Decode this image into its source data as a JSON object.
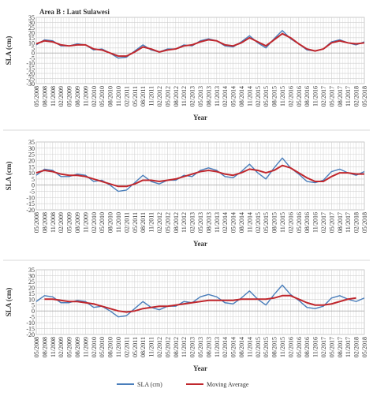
{
  "chart_data": [
    {
      "type": "line",
      "title": "Area B : Laut Sulawesi",
      "x_label": "Year",
      "y_label": "SLA (cm)",
      "categories": [
        "05/2008",
        "08/2008",
        "11/2008",
        "02/2009",
        "05/2009",
        "08/2009",
        "11/2009",
        "02/2010",
        "05/2010",
        "08/2010",
        "11/2010",
        "02/2011",
        "05/2011",
        "08/2011",
        "11/2011",
        "02/2012",
        "05/2012",
        "08/2012",
        "11/2012",
        "02/2013",
        "05/2013",
        "08/2013",
        "11/2013",
        "02/2014",
        "05/2014",
        "08/2014",
        "11/2014",
        "02/2015",
        "05/2015",
        "08/2015",
        "11/2015",
        "02/2016",
        "05/2016",
        "08/2016",
        "11/2016",
        "02/2017",
        "05/2017",
        "08/2017",
        "11/2017",
        "02/2018",
        "05/2018"
      ],
      "series": [
        {
          "name": "SLA (cm)",
          "color": "#4a7ebb",
          "values": [
            8,
            13,
            12,
            7,
            7,
            9,
            8,
            3,
            4,
            0,
            -5,
            -4,
            2,
            8,
            3,
            1,
            4,
            4,
            8,
            7,
            12,
            14,
            12,
            7,
            6,
            11,
            17,
            10,
            5,
            14,
            22,
            14,
            9,
            3,
            2,
            4,
            11,
            13,
            10,
            8,
            11
          ]
        },
        {
          "name": "Moving Average",
          "color": "#c0272d",
          "values": [
            9,
            12,
            11,
            8,
            7,
            8,
            8,
            4,
            3,
            0,
            -3,
            -3,
            1,
            6,
            4,
            1,
            3,
            4,
            7,
            8,
            11,
            13,
            12,
            8,
            7,
            10,
            15,
            11,
            7,
            13,
            19,
            15,
            9,
            4,
            2,
            4,
            10,
            12,
            10,
            9,
            10
          ]
        }
      ],
      "ylim": [
        -30,
        35
      ],
      "yticks": [
        35,
        30,
        25,
        20,
        15,
        10,
        5,
        0,
        -5,
        -10,
        -15,
        -20,
        -25,
        -30
      ],
      "grid": true
    },
    {
      "type": "line",
      "x_label": "Year",
      "y_label": "SLA (cm)",
      "categories": [
        "05/2008",
        "08/2008",
        "11/2008",
        "02/2009",
        "05/2009",
        "08/2009",
        "11/2009",
        "02/2010",
        "05/2010",
        "08/2010",
        "11/2010",
        "02/2011",
        "05/2011",
        "08/2011",
        "11/2011",
        "02/2012",
        "05/2012",
        "08/2012",
        "11/2012",
        "02/2013",
        "05/2013",
        "08/2013",
        "11/2013",
        "02/2014",
        "05/2014",
        "08/2014",
        "11/2014",
        "02/2015",
        "05/2015",
        "08/2015",
        "11/2015",
        "02/2016",
        "05/2016",
        "08/2016",
        "11/2016",
        "02/2017",
        "05/2017",
        "08/2017",
        "11/2017",
        "02/2018",
        "05/2018"
      ],
      "series": [
        {
          "name": "SLA (cm)",
          "color": "#4a7ebb",
          "values": [
            8,
            13,
            12,
            7,
            7,
            9,
            8,
            3,
            4,
            0,
            -5,
            -4,
            2,
            8,
            3,
            1,
            4,
            4,
            8,
            7,
            12,
            14,
            12,
            7,
            6,
            11,
            17,
            10,
            5,
            14,
            22,
            14,
            9,
            3,
            2,
            4,
            11,
            13,
            10,
            8,
            11
          ]
        },
        {
          "name": "Moving Average",
          "color": "#c0272d",
          "values": [
            10,
            12,
            11,
            9,
            8,
            8,
            7,
            5,
            3,
            1,
            -1,
            -1,
            1,
            4,
            4,
            3,
            4,
            5,
            7,
            9,
            11,
            12,
            11,
            9,
            8,
            10,
            13,
            12,
            10,
            12,
            16,
            14,
            10,
            6,
            3,
            3,
            7,
            10,
            10,
            9,
            9
          ]
        }
      ],
      "ylim": [
        -20,
        35
      ],
      "yticks": [
        35,
        30,
        25,
        20,
        15,
        10,
        5,
        0,
        -5,
        -10,
        -15,
        -20
      ],
      "grid": true
    },
    {
      "type": "line",
      "x_label": "Year",
      "y_label": "SLA (cm)",
      "categories": [
        "05/2008",
        "08/2008",
        "11/2008",
        "02/2009",
        "05/2009",
        "08/2009",
        "11/2009",
        "02/2010",
        "05/2010",
        "08/2010",
        "11/2010",
        "02/2011",
        "05/2011",
        "08/2011",
        "11/2011",
        "02/2012",
        "05/2012",
        "08/2012",
        "11/2012",
        "02/2013",
        "05/2013",
        "08/2013",
        "11/2013",
        "02/2014",
        "05/2014",
        "08/2014",
        "11/2014",
        "02/2015",
        "05/2015",
        "08/2015",
        "11/2015",
        "02/2016",
        "05/2016",
        "08/2016",
        "11/2016",
        "02/2017",
        "05/2017",
        "08/2017",
        "11/2017",
        "02/2018",
        "05/2018"
      ],
      "series": [
        {
          "name": "SLA (cm)",
          "color": "#4a7ebb",
          "values": [
            8,
            13,
            12,
            7,
            7,
            9,
            8,
            3,
            4,
            0,
            -5,
            -4,
            2,
            8,
            3,
            1,
            4,
            4,
            8,
            7,
            12,
            14,
            12,
            7,
            6,
            11,
            17,
            10,
            5,
            14,
            22,
            14,
            9,
            3,
            2,
            4,
            11,
            13,
            10,
            8,
            11
          ]
        },
        {
          "name": "Moving Average",
          "color": "#c0272d",
          "values": [
            null,
            10,
            10,
            9,
            8,
            8,
            7,
            6,
            4,
            2,
            0,
            -1,
            0,
            2,
            3,
            4,
            4,
            5,
            6,
            7,
            8,
            9,
            9,
            9,
            9,
            10,
            10,
            10,
            10,
            11,
            13,
            13,
            10,
            7,
            5,
            5,
            6,
            8,
            10,
            11,
            null
          ]
        }
      ],
      "ylim": [
        -20,
        35
      ],
      "yticks": [
        35,
        30,
        25,
        20,
        15,
        10,
        5,
        0,
        -5,
        -10,
        -15,
        -20
      ],
      "grid": true
    }
  ]
}
